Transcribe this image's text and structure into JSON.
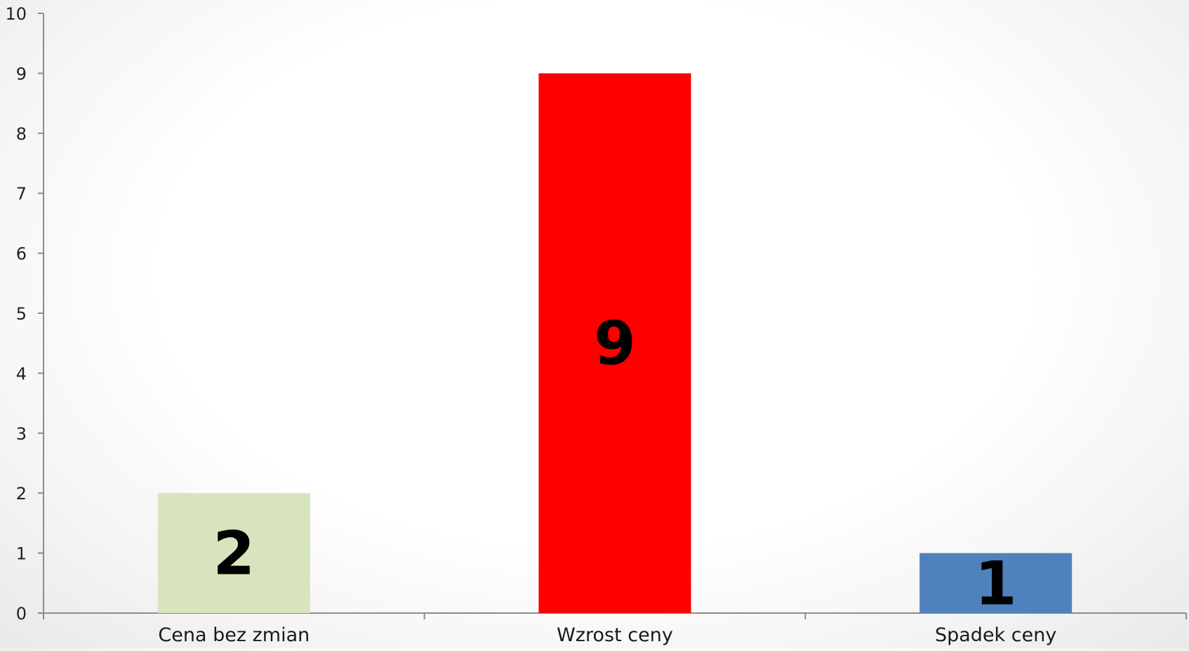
{
  "chart_data": {
    "type": "bar",
    "categories": [
      "Cena bez zmian",
      "Wzrost ceny",
      "Spadek ceny"
    ],
    "values": [
      2,
      9,
      1
    ],
    "colors": [
      "#d7e4bd",
      "#ff0000",
      "#4f81bd"
    ],
    "data_labels": [
      "2",
      "9",
      "1"
    ],
    "ylim": [
      0,
      10
    ],
    "yticks": [
      0,
      1,
      2,
      3,
      4,
      5,
      6,
      7,
      8,
      9,
      10
    ],
    "grid": false,
    "legend": "none",
    "axis_color": "#8c8c8c"
  }
}
